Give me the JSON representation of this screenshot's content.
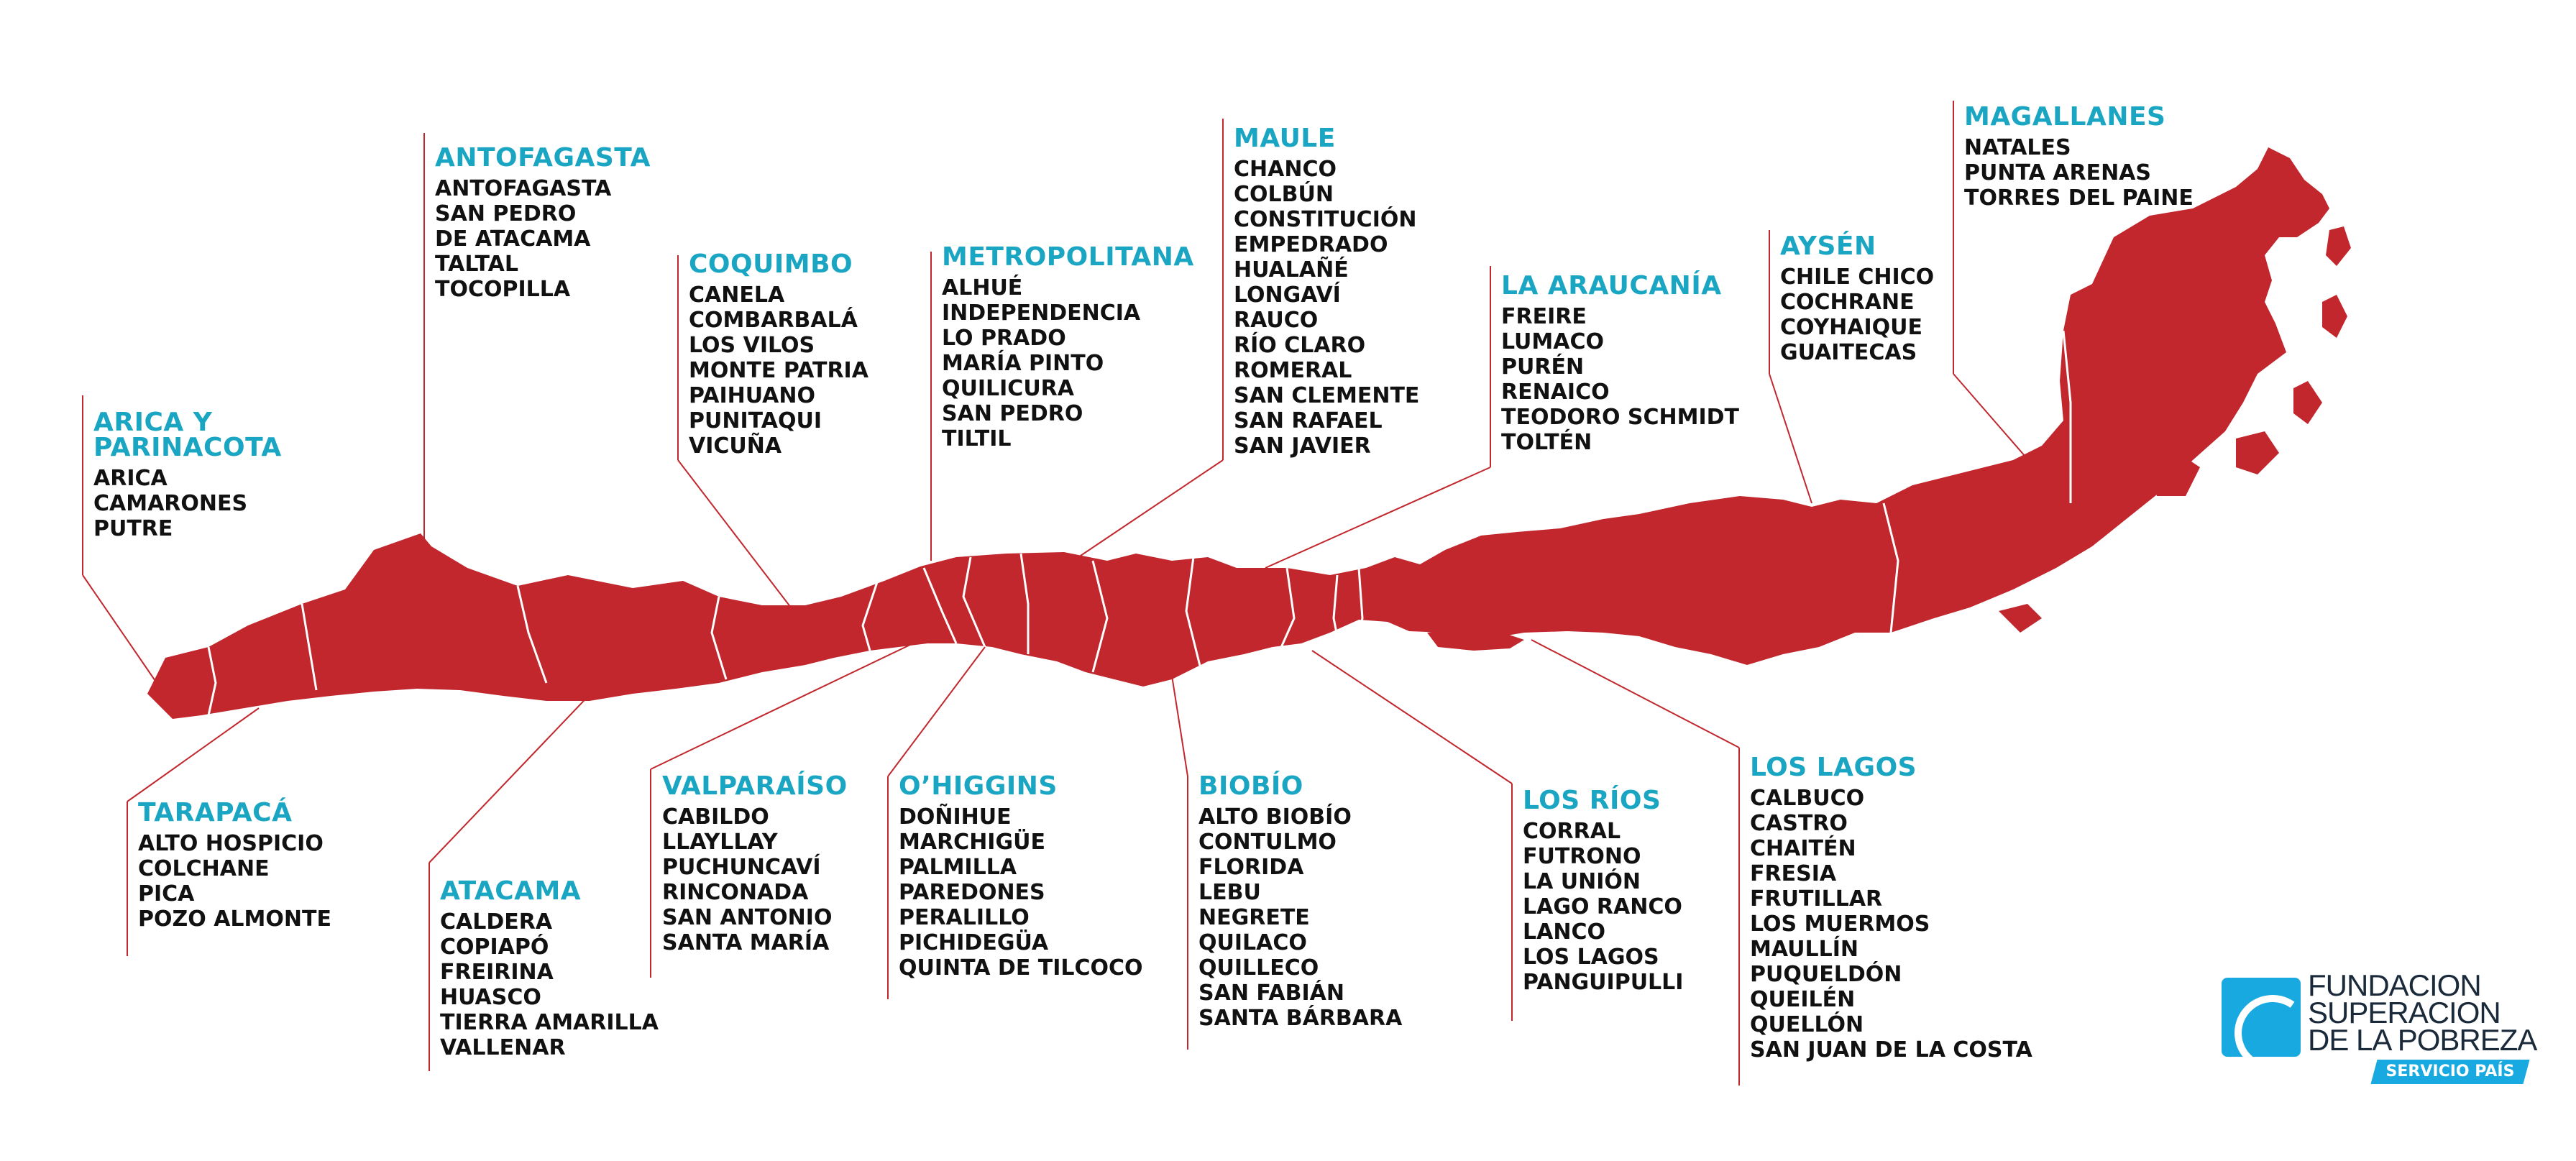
{
  "colors": {
    "land": "#c1272d",
    "line": "#c1272d",
    "heading": "#1aa6c3",
    "text": "#111111",
    "logo_blue": "#19a9e1"
  },
  "regions": [
    {
      "name": "ARICA Y\nPARINACOTA",
      "communes": [
        "ARICA",
        "CAMARONES",
        "PUTRE"
      ]
    },
    {
      "name": "TARAPACÁ",
      "communes": [
        "ALTO HOSPICIO",
        "COLCHANE",
        "PICA",
        "POZO ALMONTE"
      ]
    },
    {
      "name": "ANTOFAGASTA",
      "communes": [
        "ANTOFAGASTA",
        "SAN PEDRO",
        "DE ATACAMA",
        "TALTAL",
        "TOCOPILLA"
      ]
    },
    {
      "name": "ATACAMA",
      "communes": [
        "CALDERA",
        "COPIAPÓ",
        "FREIRINA",
        "HUASCO",
        "TIERRA AMARILLA",
        "VALLENAR"
      ]
    },
    {
      "name": "COQUIMBO",
      "communes": [
        "CANELA",
        "COMBARBALÁ",
        "LOS VILOS",
        "MONTE PATRIA",
        "PAIHUANO",
        "PUNITAQUI",
        "VICUÑA"
      ]
    },
    {
      "name": "VALPARAÍSO",
      "communes": [
        "CABILDO",
        "LLAYLLAY",
        "PUCHUNCAVÍ",
        "RINCONADA",
        "SAN ANTONIO",
        "SANTA MARÍA"
      ]
    },
    {
      "name": "METROPOLITANA",
      "communes": [
        "ALHUÉ",
        "INDEPENDENCIA",
        "LO PRADO",
        "MARÍA PINTO",
        "QUILICURA",
        "SAN PEDRO",
        "TILTIL"
      ]
    },
    {
      "name": "O’HIGGINS",
      "communes": [
        "DOÑIHUE",
        "MARCHIGÜE",
        "PALMILLA",
        "PAREDONES",
        "PERALILLO",
        "PICHIDEGÜA",
        "QUINTA DE TILCOCO"
      ]
    },
    {
      "name": "MAULE",
      "communes": [
        "CHANCO",
        "COLBÚN",
        "CONSTITUCIÓN",
        "EMPEDRADO",
        "HUALAÑÉ",
        "LONGAVÍ",
        "RAUCO",
        "RÍO CLARO",
        "ROMERAL",
        "SAN CLEMENTE",
        "SAN RAFAEL",
        "SAN JAVIER"
      ]
    },
    {
      "name": "BIOBÍO",
      "communes": [
        "ALTO BIOBÍO",
        "CONTULMO",
        "FLORIDA",
        "LEBU",
        "NEGRETE",
        "QUILACO",
        "QUILLECO",
        "SAN FABIÁN",
        "SANTA BÁRBARA"
      ]
    },
    {
      "name": "LA ARAUCANÍA",
      "communes": [
        "FREIRE",
        "LUMACO",
        "PURÉN",
        "RENAICO",
        "TEODORO SCHMIDT",
        "TOLTÉN"
      ]
    },
    {
      "name": "LOS RÍOS",
      "communes": [
        "CORRAL",
        "FUTRONO",
        "LA UNIÓN",
        "LAGO RANCO",
        "LANCO",
        "LOS LAGOS",
        "PANGUIPULLI"
      ]
    },
    {
      "name": "LOS LAGOS",
      "communes": [
        "CALBUCO",
        "CASTRO",
        "CHAITÉN",
        "FRESIA",
        "FRUTILLAR",
        "LOS MUERMOS",
        "MAULLÍN",
        "PUQUELDÓN",
        "QUEILÉN",
        "QUELLÓN",
        "SAN JUAN DE LA COSTA"
      ]
    },
    {
      "name": "AYSÉN",
      "communes": [
        "CHILE CHICO",
        "COCHRANE",
        "COYHAIQUE",
        "GUAITECAS"
      ]
    },
    {
      "name": "MAGALLANES",
      "communes": [
        "NATALES",
        "PUNTA ARENAS",
        "TORRES DEL PAINE"
      ]
    }
  ],
  "logo": {
    "line1": "FUNDACION",
    "line2": "SUPERACION",
    "line3": "DE LA POBREZA",
    "badge": "SERVICIO PAÍS"
  }
}
